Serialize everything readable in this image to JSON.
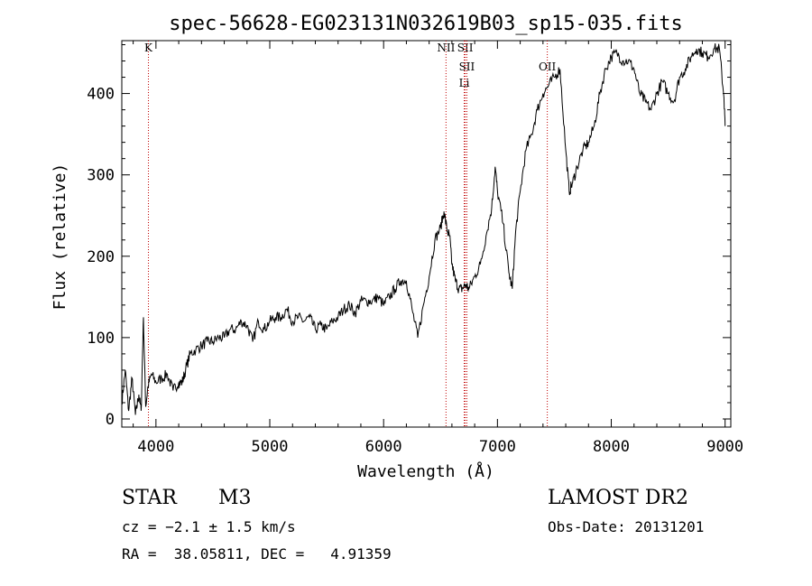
{
  "chart_data": {
    "type": "line",
    "title": "spec-56628-EG023131N032619B03_sp15-035.fits",
    "xlabel": "Wavelength (Å)",
    "ylabel": "Flux (relative)",
    "xlim": [
      3700,
      9050
    ],
    "ylim": [
      -10,
      465
    ],
    "xticks": [
      4000,
      5000,
      6000,
      7000,
      8000,
      9000
    ],
    "yticks": [
      0,
      100,
      200,
      300,
      400
    ],
    "xticklabels": [
      "4000",
      "5000",
      "6000",
      "7000",
      "8000",
      "9000"
    ],
    "yticklabels": [
      "0",
      "100",
      "200",
      "300",
      "400"
    ],
    "grid": false,
    "spectral_lines": [
      {
        "label": "K",
        "wavelength": 3934,
        "row": 0
      },
      {
        "label": "NII",
        "wavelength": 6548,
        "row": 0
      },
      {
        "label": "SII",
        "wavelength": 6717,
        "row": 0
      },
      {
        "label": "SII",
        "wavelength": 6731,
        "row": 1
      },
      {
        "label": "Li",
        "wavelength": 6708,
        "row": 2
      },
      {
        "label": "OII",
        "wavelength": 7438,
        "row": 1
      }
    ],
    "series": [
      {
        "x": [
          3700,
          3730,
          3760,
          3790,
          3820,
          3850,
          3870,
          3890,
          3910,
          3930,
          3960,
          4000,
          4050,
          4100,
          4150,
          4200,
          4230,
          4260,
          4300,
          4350,
          4400,
          4450,
          4500,
          4550,
          4600,
          4650,
          4700,
          4750,
          4800,
          4850,
          4900,
          4950,
          5000,
          5050,
          5100,
          5150,
          5200,
          5250,
          5300,
          5350,
          5400,
          5450,
          5500,
          5550,
          5600,
          5650,
          5700,
          5750,
          5800,
          5850,
          5900,
          5950,
          6000,
          6050,
          6100,
          6150,
          6200,
          6250,
          6300,
          6350,
          6400,
          6450,
          6500,
          6530,
          6560,
          6580,
          6600,
          6630,
          6660,
          6690,
          6720,
          6750,
          6800,
          6850,
          6900,
          6950,
          6980,
          7000,
          7050,
          7100,
          7130,
          7160,
          7200,
          7250,
          7300,
          7350,
          7400,
          7450,
          7500,
          7550,
          7600,
          7630,
          7660,
          7700,
          7750,
          7800,
          7850,
          7900,
          7950,
          8000,
          8050,
          8100,
          8150,
          8200,
          8250,
          8300,
          8350,
          8400,
          8450,
          8500,
          8550,
          8600,
          8650,
          8700,
          8750,
          8800,
          8850,
          8900,
          8950,
          8990,
          9000
        ],
        "y": [
          20,
          60,
          10,
          50,
          5,
          30,
          10,
          125,
          15,
          40,
          55,
          45,
          50,
          55,
          35,
          45,
          45,
          60,
          80,
          85,
          90,
          95,
          95,
          100,
          100,
          110,
          110,
          120,
          115,
          95,
          120,
          110,
          120,
          125,
          125,
          135,
          120,
          125,
          120,
          125,
          110,
          115,
          110,
          120,
          125,
          135,
          140,
          130,
          145,
          145,
          145,
          150,
          140,
          150,
          160,
          170,
          170,
          135,
          100,
          140,
          175,
          220,
          235,
          255,
          230,
          225,
          190,
          170,
          160,
          160,
          165,
          160,
          175,
          190,
          225,
          260,
          310,
          280,
          240,
          180,
          160,
          230,
          280,
          330,
          350,
          380,
          400,
          410,
          420,
          430,
          330,
          280,
          290,
          310,
          330,
          340,
          360,
          400,
          430,
          445,
          450,
          440,
          440,
          430,
          400,
          390,
          380,
          400,
          415,
          400,
          390,
          420,
          430,
          445,
          455,
          450,
          445,
          455,
          455,
          395,
          360
        ]
      }
    ]
  },
  "info": {
    "class_label": "STAR",
    "subclass": "M3",
    "survey": "LAMOST DR2",
    "redshift_line": "cz = −2.1 ± 1.5 km/s",
    "obs_date": "Obs-Date: 20131201",
    "coords": "RA =  38.05811, DEC =   4.91359"
  },
  "colors": {
    "spectrum": "#000000",
    "line_marker": "#c00000",
    "axis": "#000000"
  }
}
